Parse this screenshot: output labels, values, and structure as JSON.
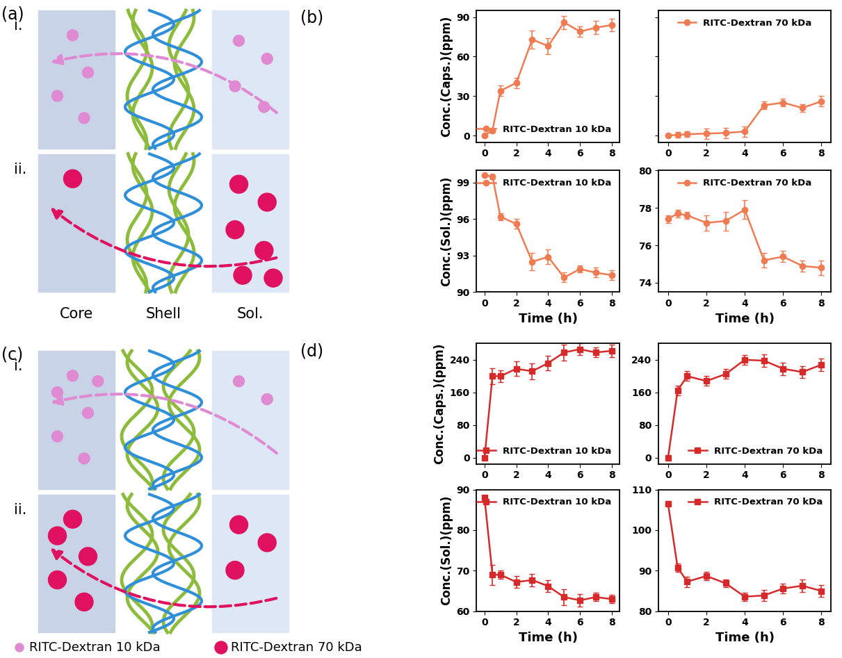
{
  "panel_labels": [
    "(a)",
    "(b)",
    "(c)",
    "(d)"
  ],
  "regions": [
    "Core",
    "Shell",
    "Sol."
  ],
  "particles": [
    {
      "name": "RITC-Dextran 10 kDa",
      "color": "#e08ad4"
    },
    {
      "name": "RITC-Dextran 70 kDa",
      "color": "#e0115f"
    }
  ],
  "diagrams": [
    {
      "label": "(a)",
      "rows": [
        {
          "label": "i.",
          "particle": "RITC-Dextran 10 kDa",
          "core_particles": 4,
          "sol_particles": 4
        },
        {
          "label": "ii.",
          "particle": "RITC-Dextran 70 kDa",
          "core_particles": 1,
          "sol_particles": 6
        }
      ]
    },
    {
      "label": "(c)",
      "rows": [
        {
          "label": "i.",
          "particle": "RITC-Dextran 10 kDa",
          "core_particles": 6,
          "sol_particles": 2
        },
        {
          "label": "ii.",
          "particle": "RITC-Dextran 70 kDa",
          "core_particles": 5,
          "sol_particles": 3
        }
      ]
    }
  ],
  "chart_data": [
    {
      "type": "line",
      "panel": "(b)",
      "ylabel": "Conc.(Caps.)(ppm)",
      "legend": "lower right",
      "x": [
        0,
        0.5,
        1,
        2,
        3,
        4,
        5,
        6,
        7,
        8
      ],
      "xlim": [
        -0.5,
        8.5
      ],
      "xticks": [
        0,
        2,
        4,
        6,
        8
      ],
      "ylim": [
        -5,
        95
      ],
      "yticks": [
        0,
        30,
        60,
        90
      ],
      "series": [
        {
          "name": "RITC-Dextran 10 kDa",
          "color": "#ef7b52",
          "marker": "circle",
          "values": [
            0,
            4,
            34,
            40,
            73,
            68,
            86,
            79,
            82,
            84
          ],
          "errors": [
            1,
            2,
            4,
            4,
            7,
            6,
            5,
            4,
            5,
            5
          ]
        }
      ]
    },
    {
      "type": "line",
      "panel": "(b)",
      "legend": "upper center",
      "tick_labels": "x",
      "x": [
        0,
        0.5,
        1,
        2,
        3,
        4,
        5,
        6,
        7,
        8
      ],
      "xlim": [
        -0.5,
        8.5
      ],
      "xticks": [
        0,
        2,
        4,
        6,
        8
      ],
      "ylim": [
        -5,
        95
      ],
      "yticks": [
        0,
        30,
        60,
        90
      ],
      "series": [
        {
          "name": "RITC-Dextran 70 kDa",
          "color": "#ef7b52",
          "marker": "circle",
          "values": [
            0,
            0.5,
            1,
            1.5,
            2,
            3,
            23,
            25,
            21,
            26
          ],
          "errors": [
            1,
            2,
            2,
            4,
            4,
            4,
            3,
            3,
            3,
            4
          ]
        }
      ]
    },
    {
      "type": "line",
      "panel": "(b)",
      "ylabel": "Conc.(Sol.)(ppm)",
      "xlabel": "Time (h)",
      "legend": "upper right",
      "x": [
        0,
        0.5,
        1,
        2,
        3,
        4,
        5,
        6,
        7,
        8
      ],
      "xlim": [
        -0.5,
        8.5
      ],
      "xticks": [
        0,
        2,
        4,
        6,
        8
      ],
      "ylim": [
        90,
        100
      ],
      "yticks": [
        90,
        93,
        96,
        99
      ],
      "series": [
        {
          "name": "RITC-Dextran 10 kDa",
          "color": "#ef7b52",
          "marker": "circle",
          "values": [
            99.6,
            99.5,
            96.2,
            95.6,
            92.5,
            92.9,
            91.2,
            91.9,
            91.6,
            91.4
          ],
          "errors": [
            0.1,
            0.2,
            0.3,
            0.4,
            0.7,
            0.6,
            0.4,
            0.3,
            0.4,
            0.4
          ]
        }
      ]
    },
    {
      "type": "line",
      "panel": "(b)",
      "xlabel": "Time (h)",
      "legend": "upper center",
      "x": [
        0,
        0.5,
        1,
        2,
        3,
        4,
        5,
        6,
        7,
        8
      ],
      "xlim": [
        -0.5,
        8.5
      ],
      "xticks": [
        0,
        2,
        4,
        6,
        8
      ],
      "ylim": [
        73.5,
        80
      ],
      "yticks": [
        74,
        76,
        78,
        80
      ],
      "series": [
        {
          "name": "RITC-Dextran 70 kDa",
          "color": "#ef7b52",
          "marker": "circle",
          "values": [
            77.4,
            77.7,
            77.6,
            77.2,
            77.3,
            77.9,
            75.2,
            75.4,
            74.9,
            74.8
          ],
          "errors": [
            0.2,
            0.2,
            0.2,
            0.4,
            0.5,
            0.5,
            0.4,
            0.3,
            0.3,
            0.4
          ]
        }
      ]
    },
    {
      "type": "line",
      "panel": "(d)",
      "ylabel": "Conc.(Caps.)(ppm)",
      "legend": "lower right",
      "x": [
        0,
        0.5,
        1,
        2,
        3,
        4,
        5,
        6,
        7,
        8
      ],
      "xlim": [
        -0.5,
        8.5
      ],
      "xticks": [
        0,
        2,
        4,
        6,
        8
      ],
      "ylim": [
        -15,
        280
      ],
      "yticks": [
        0,
        80,
        160,
        240
      ],
      "series": [
        {
          "name": "RITC-Dextran 10 kDa",
          "color": "#d62a2a",
          "marker": "square",
          "values": [
            0,
            200,
            200,
            218,
            212,
            232,
            258,
            266,
            258,
            262
          ],
          "errors": [
            5,
            20,
            15,
            18,
            20,
            18,
            20,
            15,
            12,
            15
          ]
        }
      ]
    },
    {
      "type": "line",
      "panel": "(d)",
      "legend": "lower right",
      "x": [
        0,
        0.5,
        1,
        2,
        3,
        4,
        5,
        6,
        7,
        8
      ],
      "xlim": [
        -0.5,
        8.5
      ],
      "xticks": [
        0,
        2,
        4,
        6,
        8
      ],
      "ylim": [
        -15,
        280
      ],
      "yticks": [
        0,
        80,
        160,
        240
      ],
      "series": [
        {
          "name": "RITC-Dextran 70 kDa",
          "color": "#d62a2a",
          "marker": "square",
          "values": [
            0,
            165,
            200,
            188,
            205,
            240,
            238,
            218,
            210,
            228
          ],
          "errors": [
            5,
            12,
            12,
            12,
            12,
            12,
            15,
            15,
            15,
            15
          ]
        }
      ]
    },
    {
      "type": "line",
      "panel": "(d)",
      "ylabel": "Conc.(Sol.)(ppm)",
      "xlabel": "Time (h)",
      "legend": "upper right",
      "x": [
        0,
        0.5,
        1,
        2,
        3,
        4,
        5,
        6,
        7,
        8
      ],
      "xlim": [
        -0.5,
        8.5
      ],
      "xticks": [
        0,
        2,
        4,
        6,
        8
      ],
      "ylim": [
        60,
        90
      ],
      "yticks": [
        60,
        70,
        80,
        90
      ],
      "series": [
        {
          "name": "RITC-Dextran 10 kDa",
          "color": "#d62a2a",
          "marker": "square",
          "values": [
            88,
            69,
            69,
            67.2,
            67.7,
            66.2,
            63.5,
            62.7,
            63.5,
            63.0
          ],
          "errors": [
            0.2,
            2.5,
            1,
            1.5,
            1.5,
            1.5,
            2,
            1.5,
            1,
            1
          ]
        }
      ]
    },
    {
      "type": "line",
      "panel": "(d)",
      "xlabel": "Time (h)",
      "legend": "upper right",
      "x": [
        0,
        0.5,
        1,
        2,
        3,
        4,
        5,
        6,
        7,
        8
      ],
      "xlim": [
        -0.5,
        8.5
      ],
      "xticks": [
        0,
        2,
        4,
        6,
        8
      ],
      "ylim": [
        80,
        110
      ],
      "yticks": [
        80,
        90,
        100,
        110
      ],
      "series": [
        {
          "name": "RITC-Dextran 70 kDa",
          "color": "#d62a2a",
          "marker": "square",
          "values": [
            106.5,
            90.8,
            87.3,
            88.7,
            86.9,
            83.6,
            83.9,
            85.6,
            86.3,
            85.0
          ],
          "errors": [
            0.3,
            1,
            1.3,
            1,
            1,
            1,
            1.3,
            1.2,
            1.5,
            1.5
          ]
        }
      ]
    }
  ]
}
